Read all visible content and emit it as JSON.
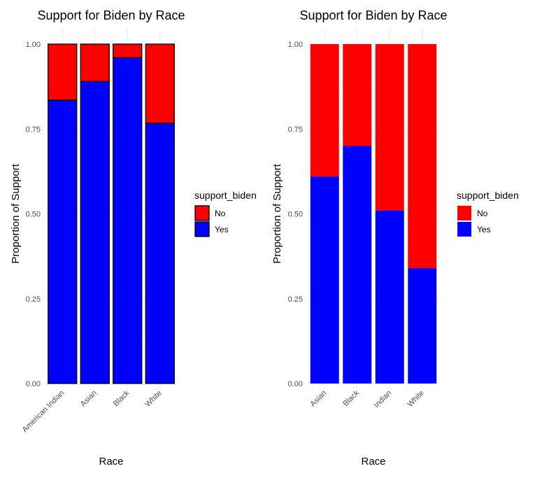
{
  "chart_data": [
    {
      "type": "bar",
      "stacked": true,
      "title": "Support for Biden by Race",
      "xlabel": "Race",
      "ylabel": "Proportion of Support",
      "ylim": [
        0,
        1
      ],
      "yticks": [
        "0.00",
        "0.25",
        "0.50",
        "0.75",
        "1.00"
      ],
      "categories": [
        "American Indian",
        "Asian",
        "Black",
        "White"
      ],
      "series": [
        {
          "name": "Yes",
          "color": "#0000FF",
          "values": [
            0.835,
            0.89,
            0.96,
            0.767
          ]
        },
        {
          "name": "No",
          "color": "#FF0000",
          "values": [
            0.165,
            0.11,
            0.04,
            0.233
          ]
        }
      ],
      "bar_outline": "#000000",
      "legend": {
        "title": "support_biden",
        "position": "right",
        "items": [
          "No",
          "Yes"
        ]
      },
      "grid": true
    },
    {
      "type": "bar",
      "stacked": true,
      "title": "Support for Biden by Race",
      "xlabel": "Race",
      "ylabel": "Proportion of Support",
      "ylim": [
        0,
        1
      ],
      "yticks": [
        "0.00",
        "0.25",
        "0.50",
        "0.75",
        "1.00"
      ],
      "categories": [
        "Asian",
        "Black",
        "Indian",
        "White"
      ],
      "series": [
        {
          "name": "Yes",
          "color": "#0000FF",
          "values": [
            0.61,
            0.7,
            0.51,
            0.34
          ]
        },
        {
          "name": "No",
          "color": "#FF0000",
          "values": [
            0.39,
            0.3,
            0.49,
            0.66
          ]
        }
      ],
      "bar_outline": null,
      "legend": {
        "title": "support_biden",
        "position": "right",
        "items": [
          "No",
          "Yes"
        ]
      },
      "grid": true
    }
  ]
}
